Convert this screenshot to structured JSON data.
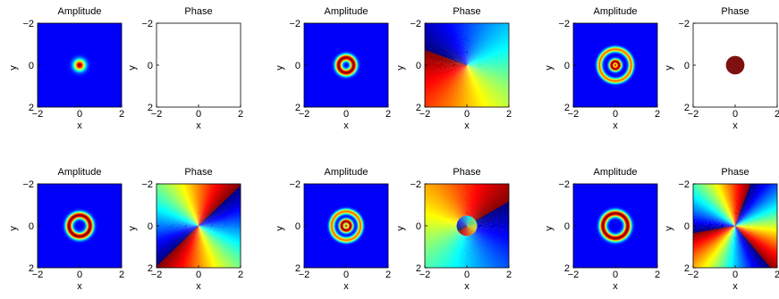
{
  "chart_data": {
    "type": "heatmap",
    "colormap": "jet",
    "titles": {
      "amplitude": "Amplitude",
      "phase": "Phase"
    },
    "xlabel": "x",
    "ylabel": "y",
    "xlim": [
      -2,
      2
    ],
    "ylim": [
      -2,
      2
    ],
    "y_axis_reversed": true,
    "ticks": [
      "−2",
      "0",
      "2"
    ],
    "plots": [
      {
        "amplitude": {
          "pattern": "spot",
          "rings_db": [
            0.22
          ]
        },
        "phase": {
          "pattern": "blank"
        }
      },
      {
        "amplitude": {
          "pattern": "ring",
          "rings_db": [
            0.2
          ]
        },
        "phase": {
          "pattern": "vortex",
          "charge": 1,
          "rotation_deg": 160
        }
      },
      {
        "amplitude": {
          "pattern": "multi_ring",
          "rings_db": [
            0.1,
            0.42
          ],
          "inner_dot": true
        },
        "phase": {
          "pattern": "disk",
          "radius_db": 0.17,
          "disk_color": "#7f1010"
        }
      },
      {
        "amplitude": {
          "pattern": "ring",
          "rings_db": [
            0.28
          ]
        },
        "phase": {
          "pattern": "vortex",
          "charge": 2,
          "rotation_deg": 90
        }
      },
      {
        "amplitude": {
          "pattern": "multi_ring",
          "rings_db": [
            0.12,
            0.38
          ],
          "inner_dot": true
        },
        "phase": {
          "pattern": "vortex_disk",
          "charge": 1,
          "radius_db": 0.22,
          "rotation_deg": 30
        }
      },
      {
        "amplitude": {
          "pattern": "ring",
          "rings_db": [
            0.33
          ]
        },
        "phase": {
          "pattern": "vortex",
          "charge": 3,
          "rotation_deg": 210
        }
      }
    ]
  }
}
